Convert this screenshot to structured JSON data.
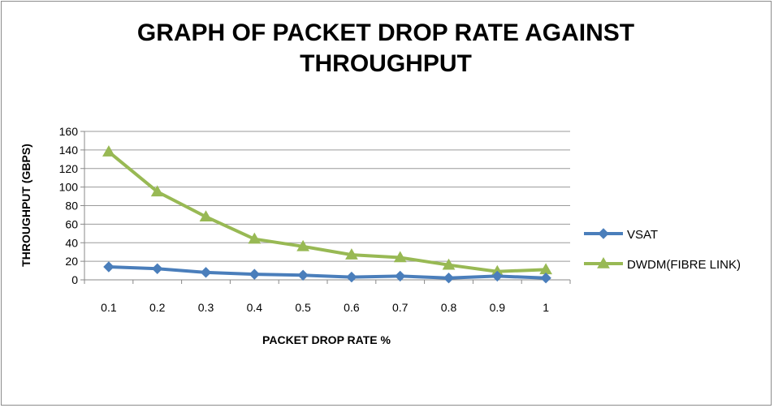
{
  "chart_data": {
    "type": "line",
    "title_line1": "GRAPH OF PACKET DROP RATE AGAINST",
    "title_line2": "THROUGHPUT",
    "xlabel": "PACKET DROP RATE %",
    "ylabel": "THROUGHPUT (GBPS)",
    "categories": [
      "0.1",
      "0.2",
      "0.3",
      "0.4",
      "0.5",
      "0.6",
      "0.7",
      "0.8",
      "0.9",
      "1"
    ],
    "ylim": [
      0,
      160
    ],
    "yticks": [
      "0",
      "20",
      "40",
      "60",
      "80",
      "100",
      "120",
      "140",
      "160"
    ],
    "grid": true,
    "legend_position": "right",
    "series": [
      {
        "name": "VSAT",
        "color": "#4a7ebb",
        "marker": "diamond",
        "values": [
          14,
          12,
          8,
          6,
          5,
          3,
          4,
          2,
          4,
          2
        ]
      },
      {
        "name": "DWDM(FIBRE LINK)",
        "color": "#98b954",
        "marker": "triangle",
        "values": [
          138,
          95,
          68,
          44,
          36,
          27,
          24,
          16,
          9,
          11
        ]
      }
    ]
  }
}
